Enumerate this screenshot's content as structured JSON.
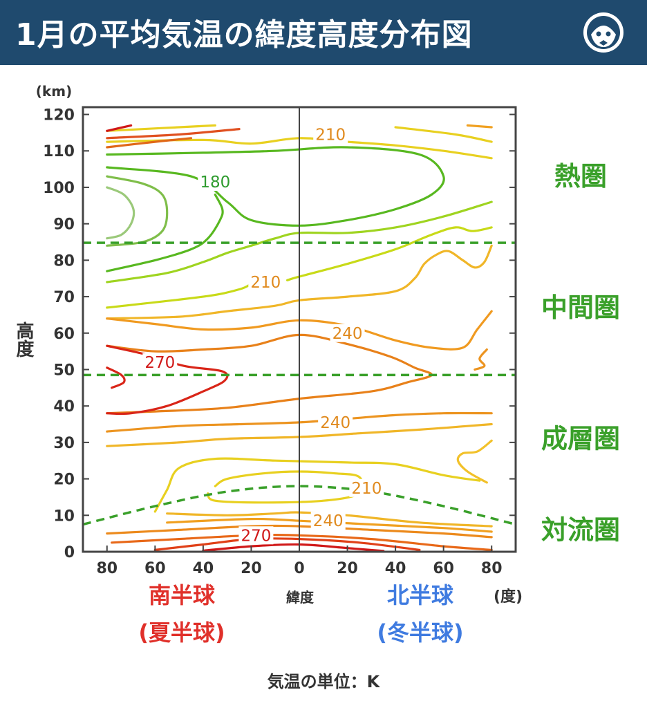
{
  "header": {
    "title": "1月の平均気温の緯度高度分布図",
    "logo_icon": "mascot-face-icon",
    "background": "#1f4a6e"
  },
  "chart_data": {
    "type": "contour",
    "xlabel": "緯度",
    "x_unit": "(度)",
    "ylabel": "高度",
    "y_unit": "(km)",
    "xlim": [
      -90,
      90
    ],
    "ylim": [
      0,
      122
    ],
    "x_ticks": [
      {
        "value": -80,
        "label": "80"
      },
      {
        "value": -60,
        "label": "60"
      },
      {
        "value": -40,
        "label": "40"
      },
      {
        "value": -20,
        "label": "20"
      },
      {
        "value": 0,
        "label": "0"
      },
      {
        "value": 20,
        "label": "20"
      },
      {
        "value": 40,
        "label": "40"
      },
      {
        "value": 60,
        "label": "60"
      },
      {
        "value": 80,
        "label": "80"
      }
    ],
    "y_ticks": [
      0,
      10,
      20,
      30,
      40,
      50,
      60,
      70,
      80,
      90,
      100,
      110,
      120
    ],
    "hemispheres": {
      "south": {
        "name": "南半球",
        "season": "(夏半球)",
        "color": "#e0302a"
      },
      "north": {
        "name": "北半球",
        "season": "(冬半球)",
        "color": "#3f7be0"
      }
    },
    "layers": [
      {
        "name": "熱圏",
        "label_y": 103
      },
      {
        "name": "中間圏",
        "label_y": 67
      },
      {
        "name": "成層圏",
        "label_y": 31
      },
      {
        "name": "対流圏",
        "label_y": 6
      }
    ],
    "layer_color": "#3aa02a",
    "boundaries": [
      {
        "name": "mesopause",
        "points": [
          [
            -90,
            84.8
          ],
          [
            90,
            84.8
          ]
        ]
      },
      {
        "name": "stratopause",
        "points": [
          [
            -90,
            48.5
          ],
          [
            90,
            48.5
          ]
        ]
      },
      {
        "name": "tropopause",
        "points": [
          [
            -90,
            7.5
          ],
          [
            -60,
            12.5
          ],
          [
            -30,
            16.5
          ],
          [
            0,
            18
          ],
          [
            30,
            16.5
          ],
          [
            60,
            12.5
          ],
          [
            90,
            7.5
          ]
        ]
      }
    ],
    "contour_labels": [
      {
        "text": "210",
        "x": 13,
        "y": 114.5,
        "color": "#e08a1e"
      },
      {
        "text": "180",
        "x": -35,
        "y": 101.5,
        "color": "#2e9b2e"
      },
      {
        "text": "210",
        "x": -14,
        "y": 74,
        "color": "#e08a1e"
      },
      {
        "text": "240",
        "x": 20,
        "y": 60,
        "color": "#e08a1e"
      },
      {
        "text": "270",
        "x": -58,
        "y": 52,
        "color": "#d01818"
      },
      {
        "text": "240",
        "x": 15,
        "y": 35.5,
        "color": "#e08a1e"
      },
      {
        "text": "210",
        "x": 28,
        "y": 17.5,
        "color": "#e08a1e"
      },
      {
        "text": "240",
        "x": 12,
        "y": 8.5,
        "color": "#e08a1e"
      },
      {
        "text": "270",
        "x": -18,
        "y": 4.5,
        "color": "#d01818"
      }
    ],
    "contours": [
      {
        "value": 180,
        "color": "#58b820",
        "points": [
          [
            -80,
            105.5
          ],
          [
            -45,
            103
          ],
          [
            -30,
            96
          ],
          [
            -20,
            91
          ],
          [
            0,
            89.5
          ],
          [
            20,
            91
          ],
          [
            40,
            94
          ],
          [
            55,
            98
          ],
          [
            60,
            103
          ],
          [
            50,
            109
          ],
          [
            20,
            111
          ],
          [
            -10,
            110
          ],
          [
            -40,
            109.5
          ],
          [
            -80,
            109
          ]
        ]
      },
      {
        "value": 180,
        "color": "#58b820",
        "points": [
          [
            -80,
            77
          ],
          [
            -60,
            80
          ],
          [
            -45,
            83
          ],
          [
            -38,
            86
          ],
          [
            -33,
            91
          ],
          [
            -32,
            94
          ],
          [
            -35,
            98
          ]
        ]
      },
      {
        "value": 170,
        "color": "#7fbe4a",
        "points": [
          [
            -80,
            103
          ],
          [
            -65,
            101
          ],
          [
            -57,
            98
          ],
          [
            -55,
            93
          ],
          [
            -57,
            88
          ],
          [
            -65,
            85
          ],
          [
            -80,
            84
          ]
        ]
      },
      {
        "value": 160,
        "color": "#9bc97a",
        "points": [
          [
            -80,
            100
          ],
          [
            -73,
            98
          ],
          [
            -69,
            94
          ],
          [
            -70,
            90
          ],
          [
            -74,
            87
          ],
          [
            -80,
            86
          ]
        ]
      },
      {
        "value": 190,
        "color": "#9fd420",
        "points": [
          [
            -80,
            74
          ],
          [
            -55,
            76.5
          ],
          [
            -40,
            79.5
          ],
          [
            -30,
            82
          ],
          [
            -20,
            84
          ],
          [
            -10,
            86
          ],
          [
            0,
            87.5
          ],
          [
            20,
            87.5
          ],
          [
            40,
            89
          ],
          [
            60,
            92
          ],
          [
            80,
            96
          ]
        ]
      },
      {
        "value": 210,
        "color": "#e8d020",
        "points": [
          [
            -80,
            115.5
          ],
          [
            -35,
            117
          ]
        ]
      },
      {
        "value": 210,
        "color": "#e8d020",
        "points": [
          [
            -80,
            112.5
          ],
          [
            -40,
            113
          ],
          [
            -20,
            112
          ],
          [
            0,
            113.5
          ],
          [
            20,
            112.5
          ],
          [
            40,
            111.5
          ],
          [
            60,
            110
          ],
          [
            80,
            108
          ]
        ]
      },
      {
        "value": 210,
        "color": "#e8d020",
        "points": [
          [
            40,
            116.5
          ],
          [
            65,
            114.5
          ],
          [
            80,
            112.5
          ]
        ]
      },
      {
        "value": 200,
        "color": "#c8da18",
        "points": [
          [
            -80,
            67
          ],
          [
            -40,
            70
          ],
          [
            -25,
            72
          ],
          [
            -20,
            73.5
          ]
        ]
      },
      {
        "value": 200,
        "color": "#c8da18",
        "points": [
          [
            -5,
            74.5
          ],
          [
            0,
            75.5
          ],
          [
            20,
            79
          ],
          [
            40,
            83
          ],
          [
            55,
            87
          ],
          [
            65,
            89
          ],
          [
            72,
            88
          ],
          [
            80,
            89
          ]
        ]
      },
      {
        "value": 220,
        "color": "#f0b628",
        "points": [
          [
            -80,
            64
          ],
          [
            -50,
            64.5
          ],
          [
            -30,
            66
          ],
          [
            -10,
            67.5
          ],
          [
            0,
            69
          ],
          [
            20,
            70
          ],
          [
            40,
            71.5
          ],
          [
            48,
            75
          ],
          [
            52,
            79
          ],
          [
            57,
            81.5
          ],
          [
            62,
            82.5
          ],
          [
            68,
            80
          ],
          [
            73,
            78
          ],
          [
            77,
            79.5
          ],
          [
            80,
            84
          ]
        ]
      },
      {
        "value": 230,
        "color": "#f09a20",
        "points": [
          [
            -80,
            64
          ],
          [
            -60,
            62.5
          ],
          [
            -40,
            61
          ],
          [
            -20,
            61.5
          ],
          [
            0,
            63.5
          ],
          [
            20,
            62
          ],
          [
            40,
            58
          ],
          [
            55,
            56
          ],
          [
            68,
            56
          ],
          [
            74,
            61
          ],
          [
            80,
            66
          ]
        ]
      },
      {
        "value": 240,
        "color": "#e8811a",
        "points": [
          [
            -80,
            56.5
          ],
          [
            -60,
            55
          ],
          [
            -40,
            55.5
          ],
          [
            -20,
            56.5
          ],
          [
            0,
            59.5
          ],
          [
            20,
            57
          ],
          [
            38,
            53.5
          ],
          [
            48,
            50.5
          ],
          [
            55,
            48.5
          ],
          [
            45,
            46.5
          ],
          [
            30,
            44
          ],
          [
            0,
            42
          ],
          [
            -30,
            39.5
          ],
          [
            -60,
            38.5
          ],
          [
            -80,
            38
          ]
        ]
      },
      {
        "value": 270,
        "color": "#d92518",
        "points": [
          [
            -80,
            50.5
          ],
          [
            -74,
            48.5
          ],
          [
            -73,
            46.5
          ],
          [
            -78,
            45
          ]
        ]
      },
      {
        "value": 270,
        "color": "#d92518",
        "points": [
          [
            -80,
            56.5
          ],
          [
            -63,
            54
          ],
          [
            -48,
            51
          ],
          [
            -32,
            49.5
          ],
          [
            -31,
            47
          ],
          [
            -40,
            44
          ],
          [
            -55,
            40
          ],
          [
            -70,
            38
          ],
          [
            -80,
            38
          ]
        ]
      },
      {
        "value": 250,
        "color": "#ec9420",
        "points": [
          [
            73,
            50
          ],
          [
            77,
            51
          ],
          [
            75,
            53
          ],
          [
            78,
            55.5
          ]
        ]
      },
      {
        "value": 250,
        "color": "#ec9420",
        "points": [
          [
            -80,
            33
          ],
          [
            -50,
            34.5
          ],
          [
            -25,
            35
          ],
          [
            0,
            35.5
          ],
          [
            20,
            36.5
          ],
          [
            40,
            37.5
          ],
          [
            60,
            38
          ],
          [
            80,
            38
          ]
        ]
      },
      {
        "value": 230,
        "color": "#f0b628",
        "points": [
          [
            -80,
            29
          ],
          [
            -50,
            30
          ],
          [
            -30,
            31
          ],
          [
            0,
            31.5
          ],
          [
            25,
            32.5
          ],
          [
            50,
            33.5
          ],
          [
            70,
            34.5
          ],
          [
            80,
            35
          ]
        ]
      },
      {
        "value": 220,
        "color": "#f2c12a",
        "points": [
          [
            80,
            30.5
          ],
          [
            74,
            27.5
          ],
          [
            68,
            27
          ],
          [
            66,
            25
          ],
          [
            70,
            22
          ],
          [
            78,
            19
          ]
        ]
      },
      {
        "value": 210,
        "color": "#e8d020",
        "points": [
          [
            -60,
            11
          ],
          [
            -55,
            17
          ],
          [
            -50,
            23
          ],
          [
            -35,
            25.5
          ],
          [
            -10,
            25
          ],
          [
            20,
            24.5
          ],
          [
            40,
            24
          ],
          [
            60,
            21
          ],
          [
            75,
            19.5
          ]
        ]
      },
      {
        "value": 200,
        "color": "#e8d020",
        "points": [
          [
            -35,
            18
          ],
          [
            -30,
            20
          ],
          [
            -15,
            21.5
          ],
          [
            0,
            22
          ],
          [
            15,
            21.5
          ],
          [
            25,
            20.5
          ],
          [
            25,
            16
          ],
          [
            10,
            14
          ],
          [
            -15,
            13.5
          ],
          [
            -35,
            14
          ],
          [
            -38,
            16
          ]
        ]
      },
      {
        "value": 230,
        "color": "#f0b628",
        "points": [
          [
            -55,
            10.5
          ],
          [
            -30,
            10
          ],
          [
            -10,
            10.5
          ],
          [
            0,
            10.8
          ],
          [
            20,
            10
          ],
          [
            50,
            8
          ],
          [
            80,
            7
          ]
        ]
      },
      {
        "value": 240,
        "color": "#f0a020",
        "points": [
          [
            -55,
            8
          ],
          [
            -20,
            9
          ],
          [
            0,
            8.5
          ],
          [
            30,
            7.5
          ],
          [
            60,
            6.5
          ],
          [
            80,
            5.5
          ]
        ]
      },
      {
        "value": 250,
        "color": "#ec8a1c",
        "points": [
          [
            -80,
            5
          ],
          [
            -50,
            6
          ],
          [
            -20,
            7
          ],
          [
            0,
            7
          ],
          [
            30,
            6
          ],
          [
            60,
            5
          ],
          [
            80,
            4
          ]
        ]
      },
      {
        "value": 260,
        "color": "#e86818",
        "points": [
          [
            -78,
            2.5
          ],
          [
            -50,
            3.5
          ],
          [
            -20,
            4.5
          ],
          [
            0,
            4.5
          ],
          [
            30,
            3.5
          ],
          [
            60,
            1.5
          ],
          [
            80,
            0.5
          ]
        ]
      },
      {
        "value": 270,
        "color": "#e04018",
        "points": [
          [
            -60,
            0.5
          ],
          [
            -40,
            2
          ],
          [
            -20,
            3.5
          ],
          [
            0,
            3.5
          ],
          [
            25,
            2.5
          ],
          [
            50,
            0.5
          ]
        ]
      },
      {
        "value": 280,
        "color": "#d01818",
        "points": [
          [
            -40,
            0.3
          ],
          [
            -20,
            1.5
          ],
          [
            0,
            2
          ],
          [
            20,
            1
          ],
          [
            35,
            0.2
          ]
        ]
      },
      {
        "value": 220,
        "color": "#e05020",
        "points": [
          [
            -80,
            113.5
          ],
          [
            -50,
            114.5
          ],
          [
            -25,
            116
          ]
        ]
      },
      {
        "value": 240,
        "color": "#e06818",
        "points": [
          [
            -80,
            111
          ],
          [
            -60,
            112.5
          ],
          [
            -45,
            113.5
          ]
        ]
      },
      {
        "value": 260,
        "color": "#d01818",
        "points": [
          [
            -80,
            115.5
          ],
          [
            -70,
            117
          ]
        ]
      },
      {
        "value": 230,
        "color": "#f0a020",
        "points": [
          [
            70,
            117
          ],
          [
            80,
            116.5
          ]
        ]
      }
    ]
  },
  "footer": {
    "note": "気温の単位：K"
  }
}
